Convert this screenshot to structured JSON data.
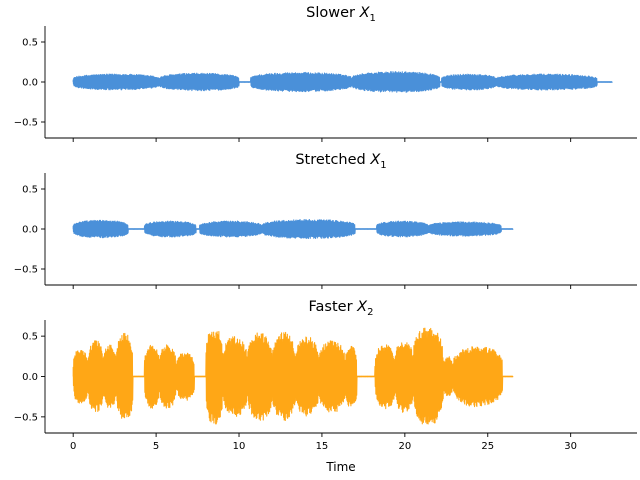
{
  "chart_data": [
    {
      "type": "line",
      "title": "Slower X_1",
      "title_main": "Slower",
      "title_var": "X",
      "title_sub": "1",
      "color": "#4a90d9",
      "xlim": [
        -1.7,
        34.0
      ],
      "ylim": [
        -0.7,
        0.7
      ],
      "yticks": [
        -0.5,
        0.0,
        0.5
      ],
      "ytick_labels": [
        "−0.5",
        "0.0",
        "0.5"
      ],
      "duration": 32.5,
      "segments": [
        {
          "start": 0.0,
          "end": 5.2,
          "amp": 0.1
        },
        {
          "start": 5.2,
          "end": 10.0,
          "amp": 0.11
        },
        {
          "start": 10.7,
          "end": 16.8,
          "amp": 0.12
        },
        {
          "start": 16.8,
          "end": 22.1,
          "amp": 0.13
        },
        {
          "start": 22.2,
          "end": 25.5,
          "amp": 0.1
        },
        {
          "start": 25.5,
          "end": 31.6,
          "amp": 0.1
        }
      ]
    },
    {
      "type": "line",
      "title": "Stretched X_1",
      "title_main": "Stretched",
      "title_var": "X",
      "title_sub": "1",
      "color": "#4a90d9",
      "xlim": [
        -1.7,
        34.0
      ],
      "ylim": [
        -0.7,
        0.7
      ],
      "yticks": [
        -0.5,
        0.0,
        0.5
      ],
      "ytick_labels": [
        "−0.5",
        "0.0",
        "0.5"
      ],
      "duration": 26.5,
      "segments": [
        {
          "start": 0.0,
          "end": 3.3,
          "amp": 0.11
        },
        {
          "start": 4.3,
          "end": 7.4,
          "amp": 0.1
        },
        {
          "start": 7.6,
          "end": 11.4,
          "amp": 0.1
        },
        {
          "start": 11.4,
          "end": 17.0,
          "amp": 0.12
        },
        {
          "start": 18.3,
          "end": 21.4,
          "amp": 0.1
        },
        {
          "start": 21.4,
          "end": 25.8,
          "amp": 0.09
        }
      ]
    },
    {
      "type": "line",
      "title": "Faster X_2",
      "title_main": "Faster",
      "title_var": "X",
      "title_sub": "2",
      "color": "#ffa716",
      "xlim": [
        -1.7,
        34.0
      ],
      "ylim": [
        -0.7,
        0.7
      ],
      "yticks": [
        -0.5,
        0.0,
        0.5
      ],
      "ytick_labels": [
        "−0.5",
        "0.0",
        "0.5"
      ],
      "xticks": [
        0,
        5,
        10,
        15,
        20,
        25,
        30
      ],
      "xtick_labels": [
        "0",
        "5",
        "10",
        "15",
        "20",
        "25",
        "30"
      ],
      "xlabel": "Time",
      "duration": 26.5,
      "segments": [
        {
          "start": 0.0,
          "end": 0.9,
          "amp": 0.35
        },
        {
          "start": 0.9,
          "end": 1.8,
          "amp": 0.45
        },
        {
          "start": 1.8,
          "end": 2.6,
          "amp": 0.4
        },
        {
          "start": 2.6,
          "end": 3.6,
          "amp": 0.55
        },
        {
          "start": 4.3,
          "end": 5.2,
          "amp": 0.4
        },
        {
          "start": 5.2,
          "end": 6.2,
          "amp": 0.4
        },
        {
          "start": 6.2,
          "end": 7.3,
          "amp": 0.3
        },
        {
          "start": 8.0,
          "end": 9.0,
          "amp": 0.62
        },
        {
          "start": 9.0,
          "end": 10.5,
          "amp": 0.5
        },
        {
          "start": 10.5,
          "end": 12.0,
          "amp": 0.55
        },
        {
          "start": 12.0,
          "end": 13.4,
          "amp": 0.55
        },
        {
          "start": 13.4,
          "end": 14.8,
          "amp": 0.5
        },
        {
          "start": 14.8,
          "end": 16.4,
          "amp": 0.45
        },
        {
          "start": 16.4,
          "end": 17.1,
          "amp": 0.4
        },
        {
          "start": 18.2,
          "end": 19.4,
          "amp": 0.4
        },
        {
          "start": 19.4,
          "end": 20.5,
          "amp": 0.45
        },
        {
          "start": 20.5,
          "end": 22.3,
          "amp": 0.62
        },
        {
          "start": 22.3,
          "end": 22.9,
          "amp": 0.25
        },
        {
          "start": 22.9,
          "end": 25.9,
          "amp": 0.38
        }
      ]
    }
  ]
}
